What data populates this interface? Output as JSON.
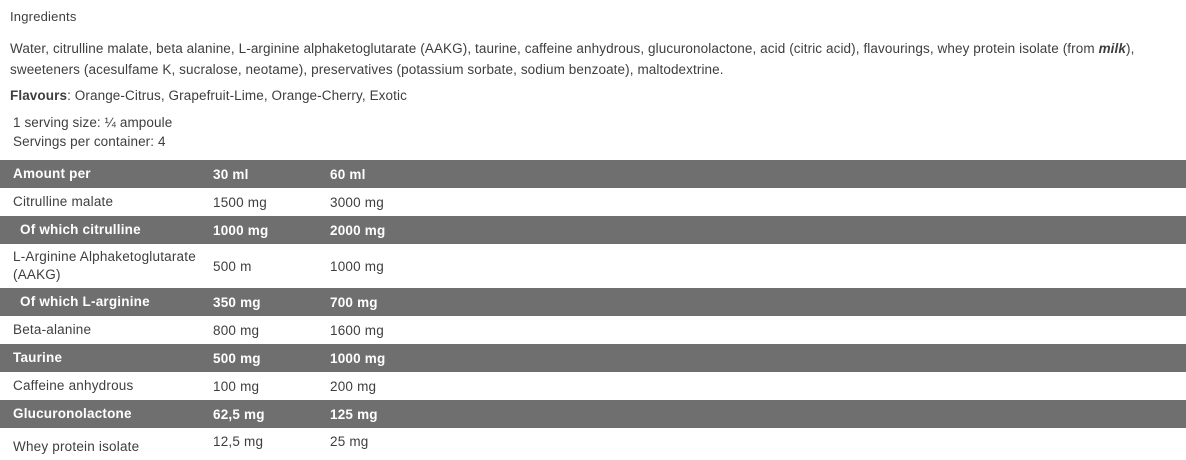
{
  "section": {
    "title": "Ingredients",
    "ingredients": {
      "text_before": "Water, citrulline malate, beta alanine, L-arginine alphaketoglutarate (AAKG), taurine, caffeine anhydrous, glucuronolactone, acid (citric acid), flavourings, whey protein isolate (from ",
      "emphasized": "milk",
      "text_after": "), sweeteners (acesulfame K, sucralose, neotame), preservatives (potassium sorbate, sodium benzoate), maltodextrine."
    },
    "flavours": {
      "label": "Flavours",
      "value": ": Orange-Citrus, Grapefruit-Lime, Orange-Cherry, Exotic"
    },
    "serving_size": "1 serving size: ¼ ampoule",
    "servings_per_container": "Servings per container: 4"
  },
  "table": {
    "header": [
      "Amount per",
      "30 ml",
      "60 ml"
    ],
    "rows": [
      {
        "name": "Citrulline malate",
        "v30": "1500 mg",
        "v60": "3000 mg"
      },
      {
        "name": "Of which citrulline",
        "v30": "1000 mg",
        "v60": "2000 mg"
      },
      {
        "name": "L-Arginine Alphaketoglutarate (AAKG)",
        "v30": "500 m",
        "v60": "1000 mg"
      },
      {
        "name": "Of which L-arginine",
        "v30": "350 mg",
        "v60": "700 mg"
      },
      {
        "name": "Beta-alanine",
        "v30": "800 mg",
        "v60": "1600 mg"
      },
      {
        "name": "Taurine",
        "v30": "500 mg",
        "v60": "1000 mg"
      },
      {
        "name": "Caffeine anhydrous",
        "v30": "100 mg",
        "v60": "200 mg"
      },
      {
        "name": "Glucuronolactone",
        "v30": "62,5 mg",
        "v60": "125 mg"
      },
      {
        "name": "Whey protein isolate",
        "v30": "12,5 mg",
        "v60": "25 mg"
      }
    ],
    "colors": {
      "dark_row_bg": "#6f6f6f",
      "dark_row_text": "#ffffff",
      "body_text": "#3e3e3e"
    }
  }
}
